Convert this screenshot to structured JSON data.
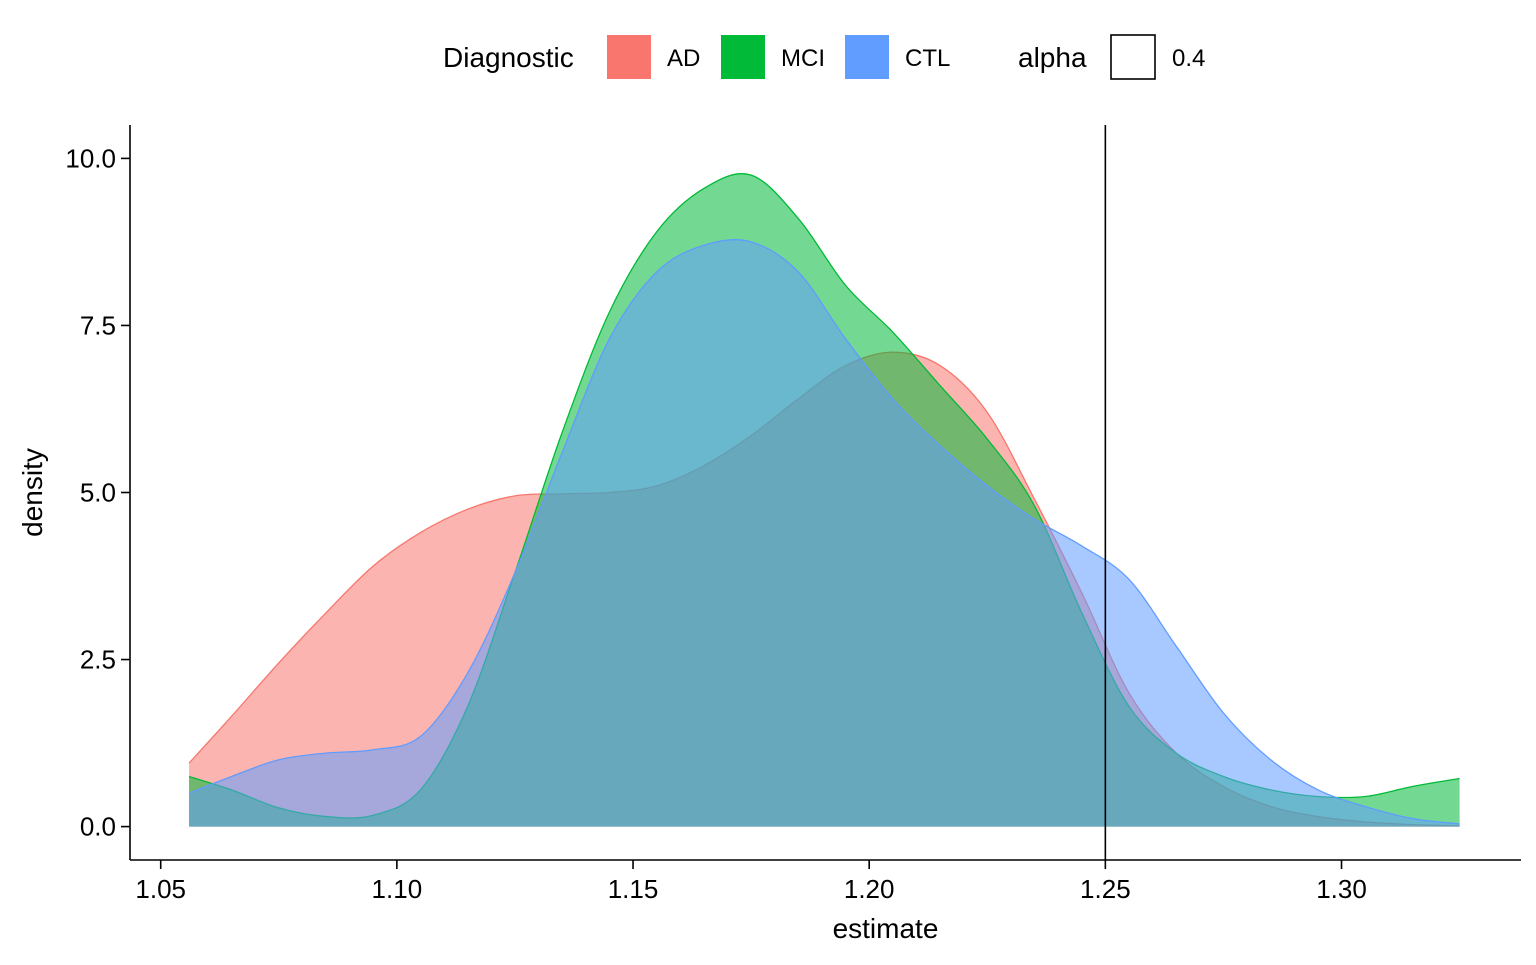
{
  "chart_data": {
    "type": "area",
    "subtype": "density",
    "xlabel": "estimate",
    "ylabel": "density",
    "xlim": [
      1.0435,
      1.338
    ],
    "ylim": [
      -0.5,
      10.5
    ],
    "x_ticks": [
      1.05,
      1.1,
      1.15,
      1.2,
      1.25,
      1.3
    ],
    "x_tick_labels": [
      "1.05",
      "1.10",
      "1.15",
      "1.20",
      "1.25",
      "1.30"
    ],
    "y_ticks": [
      0,
      2.5,
      5,
      7.5,
      10
    ],
    "y_tick_labels": [
      "0.0",
      "2.5",
      "5.0",
      "7.5",
      "10.0"
    ],
    "vline": {
      "x": 1.25
    },
    "grid": false,
    "fill_opacity": 0.55,
    "legend": {
      "position": "top",
      "title": "Diagnostic",
      "alpha_title": "alpha",
      "alpha_value": "0.4"
    },
    "series": [
      {
        "name": "AD",
        "color": "#F8766D",
        "x": [
          1.056,
          1.065,
          1.075,
          1.085,
          1.095,
          1.105,
          1.115,
          1.125,
          1.135,
          1.145,
          1.155,
          1.165,
          1.175,
          1.185,
          1.195,
          1.205,
          1.215,
          1.225,
          1.235,
          1.245,
          1.255,
          1.265,
          1.275,
          1.285,
          1.295,
          1.305,
          1.315,
          1.325
        ],
        "y": [
          0.95,
          1.65,
          2.45,
          3.2,
          3.9,
          4.4,
          4.75,
          4.95,
          4.98,
          5.0,
          5.1,
          5.4,
          5.85,
          6.4,
          6.9,
          7.1,
          6.9,
          6.2,
          4.9,
          3.5,
          2.0,
          1.1,
          0.6,
          0.3,
          0.15,
          0.07,
          0.03,
          0.01
        ]
      },
      {
        "name": "MCI",
        "color": "#00BA38",
        "x": [
          1.056,
          1.065,
          1.075,
          1.085,
          1.095,
          1.105,
          1.115,
          1.125,
          1.135,
          1.145,
          1.155,
          1.165,
          1.175,
          1.185,
          1.195,
          1.205,
          1.215,
          1.225,
          1.235,
          1.245,
          1.255,
          1.265,
          1.275,
          1.285,
          1.295,
          1.305,
          1.315,
          1.325
        ],
        "y": [
          0.75,
          0.55,
          0.28,
          0.15,
          0.17,
          0.55,
          1.8,
          3.8,
          5.9,
          7.7,
          8.9,
          9.55,
          9.75,
          9.1,
          8.1,
          7.4,
          6.6,
          5.8,
          4.8,
          3.2,
          1.8,
          1.1,
          0.75,
          0.55,
          0.45,
          0.45,
          0.6,
          0.72
        ]
      },
      {
        "name": "CTL",
        "color": "#619CFF",
        "x": [
          1.056,
          1.065,
          1.075,
          1.085,
          1.095,
          1.105,
          1.115,
          1.125,
          1.135,
          1.145,
          1.155,
          1.165,
          1.175,
          1.185,
          1.195,
          1.205,
          1.215,
          1.225,
          1.235,
          1.245,
          1.255,
          1.265,
          1.275,
          1.285,
          1.295,
          1.305,
          1.315,
          1.325
        ],
        "y": [
          0.5,
          0.75,
          1.0,
          1.1,
          1.15,
          1.35,
          2.3,
          3.8,
          5.6,
          7.3,
          8.3,
          8.7,
          8.75,
          8.3,
          7.3,
          6.4,
          5.7,
          5.1,
          4.6,
          4.2,
          3.7,
          2.7,
          1.7,
          1.0,
          0.55,
          0.3,
          0.12,
          0.04
        ]
      }
    ]
  }
}
